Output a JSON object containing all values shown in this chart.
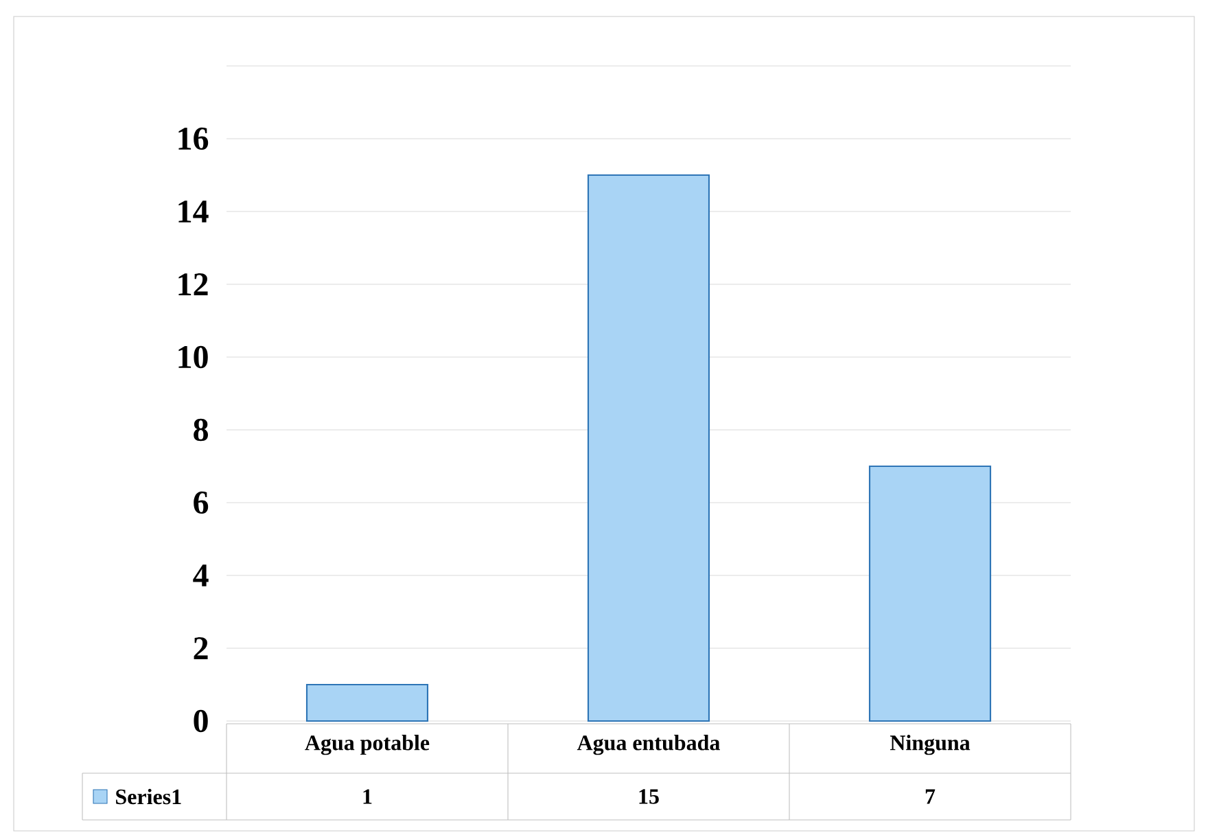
{
  "chart_data": {
    "type": "bar",
    "categories": [
      "Agua potable",
      "Agua entubada",
      "Ninguna"
    ],
    "series": [
      {
        "name": "Series1",
        "color": "#a9d4f5",
        "values": [
          1,
          15,
          7
        ]
      }
    ],
    "ylim": [
      0,
      18
    ],
    "yticks": [
      0,
      2,
      4,
      6,
      8,
      10,
      12,
      14,
      16,
      {
        "value": 18,
        "label": null
      }
    ],
    "grid": "y",
    "data_labels": true,
    "legend": "bottom"
  }
}
